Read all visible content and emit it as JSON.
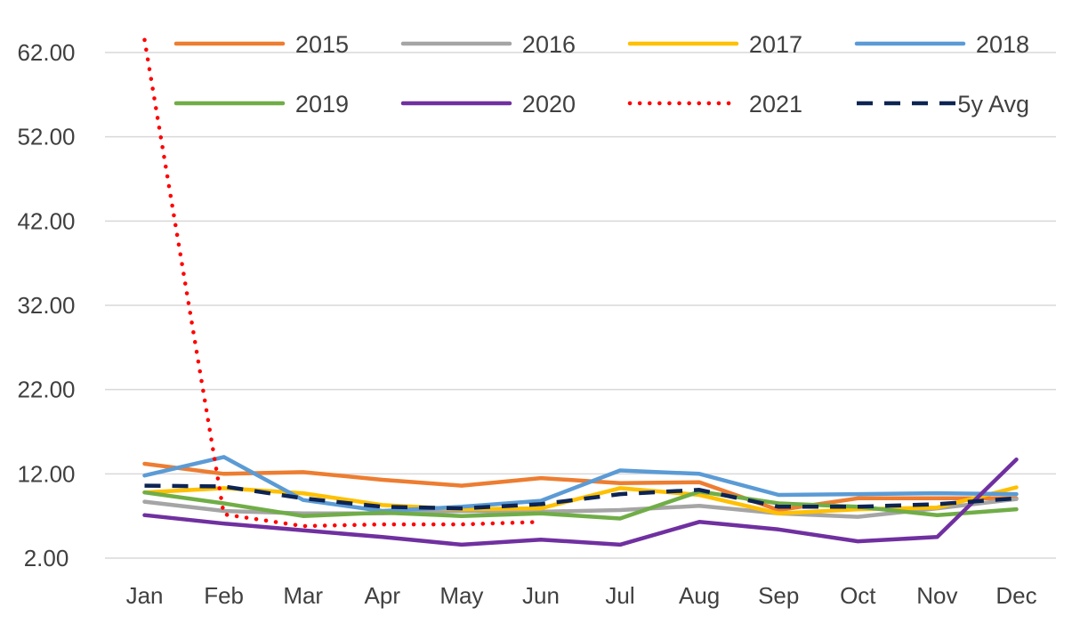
{
  "chart_data": {
    "type": "line",
    "title": "",
    "xlabel": "",
    "ylabel": "",
    "categories": [
      "Jan",
      "Feb",
      "Mar",
      "Apr",
      "May",
      "Jun",
      "Jul",
      "Aug",
      "Sep",
      "Oct",
      "Nov",
      "Dec"
    ],
    "ylim": [
      2,
      62
    ],
    "yticks": [
      2,
      12,
      22,
      32,
      42,
      52,
      62
    ],
    "ytick_labels": [
      "2.00",
      "12.00",
      "22.00",
      "32.00",
      "42.00",
      "52.00",
      "62.00"
    ],
    "grid": "horizontal",
    "legend": "top",
    "series": [
      {
        "name": "2015",
        "color": "#ED7D31",
        "dash": "solid",
        "values": [
          13.2,
          12.0,
          12.2,
          11.3,
          10.6,
          11.5,
          10.9,
          11.0,
          7.7,
          9.1,
          9.1,
          9.1
        ]
      },
      {
        "name": "2016",
        "color": "#A5A5A5",
        "dash": "solid",
        "values": [
          8.7,
          7.6,
          7.3,
          7.3,
          7.6,
          7.5,
          7.7,
          8.2,
          7.3,
          6.9,
          7.9,
          9.0
        ]
      },
      {
        "name": "2017",
        "color": "#FFC000",
        "dash": "solid",
        "values": [
          9.8,
          10.3,
          9.7,
          8.3,
          7.8,
          7.9,
          10.3,
          9.5,
          7.3,
          7.8,
          8.0,
          10.4
        ]
      },
      {
        "name": "2018",
        "color": "#5B9BD5",
        "dash": "solid",
        "values": [
          11.8,
          14.0,
          8.9,
          7.6,
          8.1,
          8.8,
          12.4,
          12.0,
          9.5,
          9.6,
          9.7,
          9.6
        ]
      },
      {
        "name": "2019",
        "color": "#70AD47",
        "dash": "solid",
        "values": [
          9.8,
          8.5,
          7.0,
          7.4,
          7.0,
          7.3,
          6.7,
          9.9,
          8.5,
          8.1,
          7.1,
          7.8
        ]
      },
      {
        "name": "2020",
        "color": "#7030A0",
        "dash": "solid",
        "values": [
          7.1,
          6.1,
          5.3,
          4.5,
          3.6,
          4.2,
          3.6,
          6.3,
          5.4,
          4.0,
          4.5,
          13.7
        ]
      },
      {
        "name": "2021",
        "color": "#FF0000",
        "dash": "dotted",
        "values": [
          63.5,
          7.2,
          5.8,
          6.0,
          6.0,
          6.3,
          null,
          null,
          null,
          null,
          null,
          null
        ]
      },
      {
        "name": "5y Avg",
        "color": "#0D2453",
        "dash": "dashed",
        "values": [
          10.6,
          10.5,
          9.1,
          8.1,
          7.9,
          8.4,
          9.6,
          10.1,
          8.1,
          8.1,
          8.4,
          9.1
        ]
      }
    ]
  }
}
